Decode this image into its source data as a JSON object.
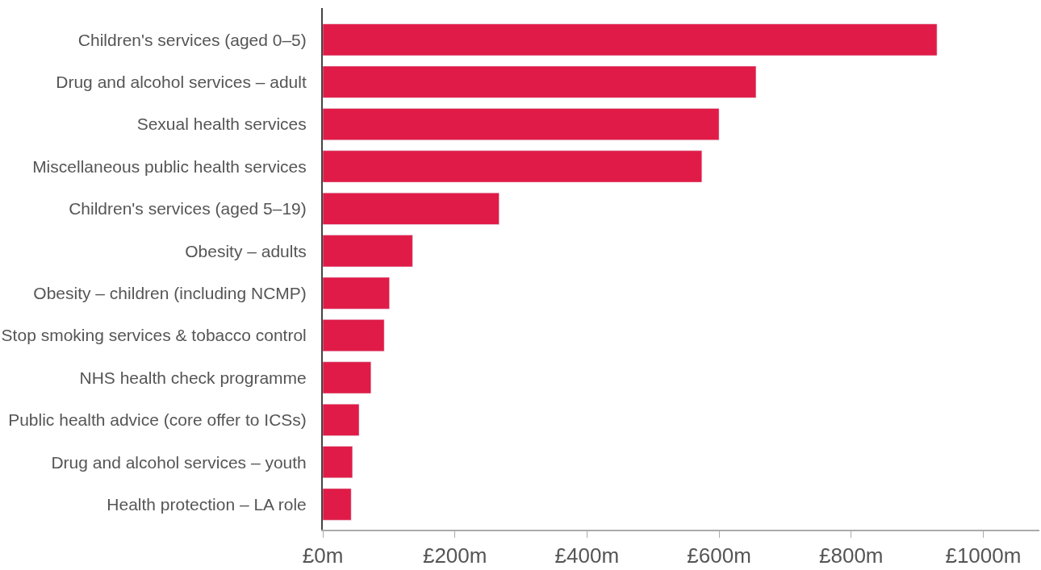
{
  "chart_data": {
    "type": "bar",
    "orientation": "horizontal",
    "categories": [
      "Children's services (aged 0–5)",
      "Drug and alcohol services – adult",
      "Sexual health services",
      "Miscellaneous public health services",
      "Children's services (aged 5–19)",
      "Obesity – adults",
      "Obesity – children (including NCMP)",
      "Stop smoking services & tobacco control",
      "NHS health check programme",
      "Public health advice (core offer to ICSs)",
      "Drug and alcohol services – youth",
      "Health protection – LA role"
    ],
    "values": [
      930,
      656,
      600,
      574,
      267,
      136,
      101,
      93,
      73,
      55,
      45,
      43
    ],
    "color": "#e01b47",
    "xlim": [
      0,
      1085
    ],
    "xticks": [
      {
        "value": 0,
        "label": "£0m"
      },
      {
        "value": 200,
        "label": "£200m"
      },
      {
        "value": 400,
        "label": "£400m"
      },
      {
        "value": 600,
        "label": "£600m"
      },
      {
        "value": 800,
        "label": "£800m"
      },
      {
        "value": 1000,
        "label": "£1000m"
      }
    ]
  }
}
